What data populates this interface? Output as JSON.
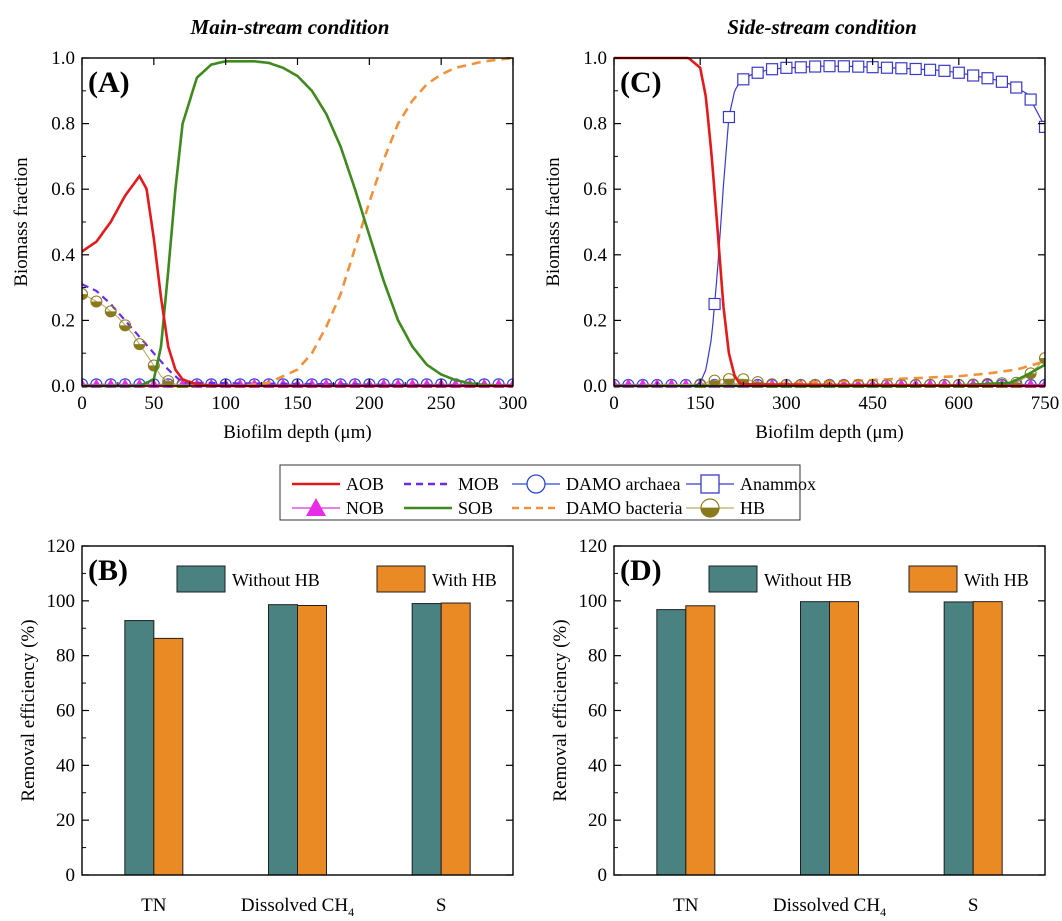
{
  "titles": {
    "left": "Main-stream condition",
    "right": "Side-stream condition"
  },
  "colors": {
    "AOB": "#e31a1c",
    "MOB": "#6a2ce8",
    "DAMO_archaea": "#2b4bd6",
    "Anammox": "#3a3ac8",
    "NOB": "#e52ee5",
    "SOB": "#3f8a1f",
    "DAMO_bacteria": "#f0913c",
    "HB": "#a59233",
    "bar_without": "#4a8181",
    "bar_with": "#ea8a25"
  },
  "legend": {
    "items": [
      {
        "label": "AOB",
        "style": "solid-line",
        "color": "#e31a1c"
      },
      {
        "label": "MOB",
        "style": "dashed-line",
        "color": "#6a2ce8"
      },
      {
        "label": "DAMO archaea",
        "style": "line-circle",
        "color": "#2b4bd6"
      },
      {
        "label": "Anammox",
        "style": "line-square",
        "color": "#3a3ac8"
      },
      {
        "label": "NOB",
        "style": "line-triangle",
        "color": "#e52ee5"
      },
      {
        "label": "SOB",
        "style": "solid-line",
        "color": "#3f8a1f"
      },
      {
        "label": "DAMO bacteria",
        "style": "dashed-line",
        "color": "#f0913c"
      },
      {
        "label": "HB",
        "style": "line-halfcircle",
        "color": "#a59233"
      }
    ]
  },
  "chart_data": [
    {
      "panel": "(A)",
      "type": "line",
      "title": "Main-stream condition",
      "xlabel": "Biofilm depth (μm)",
      "ylabel": "Biomass fraction",
      "xlim": [
        0,
        300
      ],
      "ylim": [
        0,
        1.0
      ],
      "xticks": [
        "0",
        "50",
        "100",
        "150",
        "200",
        "250",
        "300"
      ],
      "yticks": [
        "0.0",
        "0.2",
        "0.4",
        "0.6",
        "0.8",
        "1.0"
      ],
      "series": [
        {
          "name": "AOB",
          "x": [
            0,
            10,
            20,
            30,
            40,
            45,
            50,
            55,
            60,
            65,
            70,
            80,
            90,
            100,
            300
          ],
          "y": [
            0.41,
            0.44,
            0.5,
            0.58,
            0.64,
            0.6,
            0.45,
            0.27,
            0.12,
            0.05,
            0.02,
            0.005,
            0.002,
            0.0,
            0.0
          ]
        },
        {
          "name": "MOB",
          "x": [
            0,
            10,
            20,
            30,
            40,
            50,
            60,
            65,
            70,
            300
          ],
          "y": [
            0.31,
            0.29,
            0.25,
            0.2,
            0.15,
            0.1,
            0.05,
            0.03,
            0.01,
            0.0
          ]
        },
        {
          "name": "SOB",
          "x": [
            0,
            40,
            50,
            55,
            60,
            65,
            70,
            80,
            90,
            100,
            110,
            120,
            130,
            140,
            150,
            160,
            170,
            180,
            190,
            200,
            210,
            220,
            230,
            240,
            250,
            260,
            270,
            280,
            290,
            300
          ],
          "y": [
            0.0,
            0.0,
            0.02,
            0.12,
            0.35,
            0.6,
            0.8,
            0.94,
            0.98,
            0.99,
            0.99,
            0.99,
            0.985,
            0.97,
            0.945,
            0.9,
            0.83,
            0.73,
            0.6,
            0.46,
            0.32,
            0.2,
            0.12,
            0.065,
            0.035,
            0.018,
            0.008,
            0.003,
            0.001,
            0.0
          ]
        },
        {
          "name": "DAMO bacteria",
          "x": [
            0,
            110,
            130,
            150,
            160,
            170,
            180,
            190,
            200,
            210,
            220,
            230,
            240,
            250,
            260,
            270,
            280,
            290,
            300
          ],
          "y": [
            0.0,
            0.0,
            0.01,
            0.05,
            0.1,
            0.18,
            0.28,
            0.42,
            0.56,
            0.69,
            0.8,
            0.87,
            0.92,
            0.95,
            0.97,
            0.98,
            0.99,
            0.995,
            1.0
          ]
        },
        {
          "name": "HB",
          "x": [
            0,
            5,
            15,
            25,
            35,
            45,
            55,
            60,
            65,
            70,
            80,
            300
          ],
          "y": [
            0.28,
            0.27,
            0.245,
            0.21,
            0.16,
            0.095,
            0.03,
            0.015,
            0.005,
            0.002,
            0.0,
            0.0
          ]
        },
        {
          "name": "NOB",
          "x": [
            0,
            300
          ],
          "y": [
            0.005,
            0.005
          ]
        },
        {
          "name": "DAMO archaea",
          "x": [
            0,
            300
          ],
          "y": [
            0.005,
            0.005
          ]
        }
      ]
    },
    {
      "panel": "(C)",
      "type": "line",
      "title": "Side-stream condition",
      "xlabel": "Biofilm depth (μm)",
      "ylabel": "Biomass fraction",
      "xlim": [
        0,
        750
      ],
      "ylim": [
        0,
        1.0
      ],
      "xticks": [
        "0",
        "150",
        "300",
        "450",
        "600",
        "750"
      ],
      "yticks": [
        "0.0",
        "0.2",
        "0.4",
        "0.6",
        "0.8",
        "1.0"
      ],
      "series": [
        {
          "name": "AOB",
          "x": [
            0,
            130,
            150,
            160,
            170,
            180,
            190,
            200,
            210,
            220,
            750
          ],
          "y": [
            1.0,
            1.0,
            0.97,
            0.88,
            0.7,
            0.48,
            0.25,
            0.1,
            0.03,
            0.005,
            0.0
          ]
        },
        {
          "name": "Anammox",
          "x": [
            0,
            140,
            150,
            160,
            170,
            180,
            190,
            200,
            210,
            220,
            240,
            270,
            300,
            330,
            360,
            390,
            420,
            450,
            480,
            510,
            540,
            570,
            600,
            630,
            660,
            690,
            720,
            735,
            750
          ],
          "y": [
            0.0,
            0.0,
            0.01,
            0.05,
            0.15,
            0.35,
            0.6,
            0.82,
            0.9,
            0.93,
            0.95,
            0.965,
            0.97,
            0.972,
            0.975,
            0.975,
            0.974,
            0.972,
            0.97,
            0.968,
            0.965,
            0.962,
            0.955,
            0.945,
            0.935,
            0.92,
            0.89,
            0.84,
            0.79
          ]
        },
        {
          "name": "SOB",
          "x": [
            0,
            250,
            300,
            450,
            600,
            690,
            720,
            750
          ],
          "y": [
            0.0,
            0.0,
            0.0,
            0.0,
            0.002,
            0.01,
            0.035,
            0.065
          ]
        },
        {
          "name": "DAMO bacteria",
          "x": [
            0,
            250,
            300,
            400,
            500,
            600,
            650,
            700,
            750
          ],
          "y": [
            0.0,
            0.005,
            0.008,
            0.015,
            0.022,
            0.03,
            0.038,
            0.05,
            0.075
          ]
        },
        {
          "name": "HB",
          "x": [
            0,
            150,
            170,
            190,
            210,
            230,
            250,
            270,
            300,
            400,
            500,
            600,
            700,
            720,
            735,
            750
          ],
          "y": [
            0.0,
            0.005,
            0.015,
            0.02,
            0.022,
            0.02,
            0.012,
            0.006,
            0.003,
            0.002,
            0.002,
            0.003,
            0.01,
            0.03,
            0.055,
            0.085
          ]
        },
        {
          "name": "NOB",
          "x": [
            0,
            750
          ],
          "y": [
            0.005,
            0.005
          ]
        },
        {
          "name": "DAMO archaea",
          "x": [
            0,
            750
          ],
          "y": [
            0.003,
            0.003
          ]
        }
      ]
    },
    {
      "panel": "(B)",
      "type": "bar",
      "ylabel": "Removal efficiency (%)",
      "ylim": [
        0,
        120
      ],
      "yticks": [
        "0",
        "20",
        "40",
        "60",
        "80",
        "100",
        "120"
      ],
      "categories": [
        "TN",
        "Dissolved CH",
        "S"
      ],
      "category_subscripts": [
        "",
        "4",
        ""
      ],
      "series": [
        {
          "name": "Without HB",
          "values": [
            92.8,
            98.6,
            99.0
          ]
        },
        {
          "name": "With HB",
          "values": [
            86.3,
            98.3,
            99.2
          ]
        }
      ],
      "legend_position": "top"
    },
    {
      "panel": "(D)",
      "type": "bar",
      "ylabel": "Removal efficiency (%)",
      "ylim": [
        0,
        120
      ],
      "yticks": [
        "0",
        "20",
        "40",
        "60",
        "80",
        "100",
        "120"
      ],
      "categories": [
        "TN",
        "Dissolved CH",
        "S"
      ],
      "category_subscripts": [
        "",
        "4",
        ""
      ],
      "series": [
        {
          "name": "Without HB",
          "values": [
            96.8,
            99.7,
            99.6
          ]
        },
        {
          "name": "With HB",
          "values": [
            98.2,
            99.7,
            99.7
          ]
        }
      ],
      "legend_position": "top"
    }
  ]
}
